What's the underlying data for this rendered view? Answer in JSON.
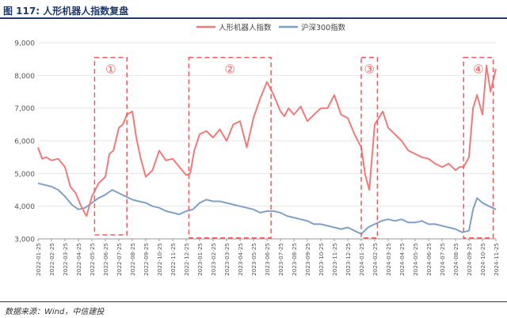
{
  "figure": {
    "title": "图 117: 人形机器人指数复盘",
    "source": "数据来源：Wind，中信建投"
  },
  "chart_data": {
    "type": "line",
    "title": "图 117: 人形机器人指数复盘",
    "ylim": [
      3000,
      9000
    ],
    "y_ticks": [
      "3,000",
      "4,000",
      "5,000",
      "6,000",
      "7,000",
      "8,000",
      "9,000"
    ],
    "y_tick_values": [
      3000,
      4000,
      5000,
      6000,
      7000,
      8000,
      9000
    ],
    "x_tick_labels": [
      "2022-01-25",
      "2022-02-25",
      "2022-03-25",
      "2022-04-25",
      "2022-05-25",
      "2022-06-25",
      "2022-07-25",
      "2022-08-25",
      "2022-09-25",
      "2022-10-25",
      "2022-11-25",
      "2022-12-25",
      "2023-01-25",
      "2023-02-25",
      "2023-03-25",
      "2023-04-25",
      "2023-05-25",
      "2023-06-25",
      "2023-07-25",
      "2023-08-25",
      "2023-09-25",
      "2023-10-25",
      "2023-11-25",
      "2023-12-25",
      "2024-01-25",
      "2024-02-25",
      "2024-03-25",
      "2024-04-25",
      "2024-05-25",
      "2024-06-25",
      "2024-07-25",
      "2024-08-25",
      "2024-09-25",
      "2024-10-25",
      "2024-11-25"
    ],
    "legend_position": "top",
    "series": [
      {
        "name": "人形机器人指数",
        "color": "#f07a7a",
        "x": [
          0,
          0.3,
          0.6,
          1,
          1.5,
          2,
          2.4,
          2.8,
          3.2,
          3.6,
          4,
          4.5,
          5,
          5.3,
          5.6,
          6,
          6.3,
          6.6,
          7,
          7.3,
          7.6,
          8,
          8.5,
          9,
          9.5,
          10,
          10.5,
          11,
          11.3,
          11.6,
          12,
          12.5,
          13,
          13.5,
          14,
          14.5,
          15,
          15.5,
          16,
          16.5,
          17,
          17.5,
          18,
          18.3,
          18.6,
          19,
          19.5,
          20,
          20.5,
          21,
          21.5,
          22,
          22.5,
          23,
          23.5,
          24,
          24.3,
          24.6,
          25,
          25.3,
          25.6,
          26,
          26.5,
          27,
          27.5,
          28,
          28.5,
          29,
          29.5,
          30,
          30.5,
          31,
          31.3,
          31.6,
          32,
          32.3,
          32.6,
          33,
          33.3,
          33.6,
          34
        ],
        "values": [
          5800,
          5450,
          5500,
          5400,
          5450,
          5200,
          4600,
          4400,
          4000,
          3700,
          4300,
          4700,
          4900,
          5600,
          5700,
          6400,
          6500,
          6800,
          6900,
          6100,
          5500,
          4900,
          5100,
          5700,
          5400,
          5450,
          5200,
          4950,
          5000,
          5700,
          6200,
          6300,
          6100,
          6350,
          6000,
          6500,
          6600,
          5800,
          6700,
          7300,
          7800,
          7400,
          6900,
          6750,
          7000,
          6800,
          7050,
          6600,
          6800,
          7000,
          7000,
          7400,
          6800,
          6700,
          6200,
          5800,
          4950,
          4500,
          6500,
          6700,
          6900,
          6400,
          6200,
          6000,
          5700,
          5600,
          5500,
          5450,
          5300,
          5200,
          5300,
          5100,
          5200,
          5200,
          5500,
          7000,
          7400,
          6800,
          8300,
          7500,
          8200
        ]
      },
      {
        "name": "沪深300指数",
        "color": "#7fa1c8",
        "x": [
          0,
          0.5,
          1,
          1.5,
          2,
          2.5,
          3,
          3.5,
          4,
          4.5,
          5,
          5.5,
          6,
          6.5,
          7,
          7.5,
          8,
          8.5,
          9,
          9.5,
          10,
          10.5,
          11,
          11.5,
          12,
          12.5,
          13,
          13.5,
          14,
          14.5,
          15,
          15.5,
          16,
          16.5,
          17,
          17.5,
          18,
          18.5,
          19,
          19.5,
          20,
          20.5,
          21,
          21.5,
          22,
          22.5,
          23,
          23.5,
          24,
          24.5,
          25,
          25.5,
          26,
          26.5,
          27,
          27.5,
          28,
          28.5,
          29,
          29.5,
          30,
          30.5,
          31,
          31.5,
          32,
          32.3,
          32.6,
          33,
          33.5,
          34
        ],
        "values": [
          4700,
          4650,
          4600,
          4500,
          4300,
          4050,
          3900,
          3950,
          4100,
          4250,
          4350,
          4500,
          4400,
          4300,
          4200,
          4150,
          4100,
          4000,
          3950,
          3850,
          3800,
          3750,
          3850,
          3900,
          4100,
          4200,
          4150,
          4150,
          4100,
          4050,
          4000,
          3950,
          3900,
          3800,
          3850,
          3850,
          3800,
          3700,
          3650,
          3600,
          3550,
          3450,
          3450,
          3400,
          3350,
          3300,
          3350,
          3250,
          3150,
          3350,
          3450,
          3550,
          3600,
          3550,
          3600,
          3500,
          3500,
          3550,
          3450,
          3450,
          3400,
          3350,
          3300,
          3200,
          3250,
          3900,
          4250,
          4100,
          4000,
          3900
        ]
      }
    ],
    "annotations": [
      {
        "label": "①",
        "x_start": 4.2,
        "x_end": 6.6,
        "y_top": 8550,
        "y_bottom": 3120
      },
      {
        "label": "②",
        "x_start": 11.2,
        "x_end": 17.3,
        "y_top": 8550,
        "y_bottom": 3030
      },
      {
        "label": "③",
        "x_start": 24.0,
        "x_end": 25.2,
        "y_top": 8550,
        "y_bottom": 3030
      },
      {
        "label": "④",
        "x_start": 31.6,
        "x_end": 33.8,
        "y_top": 8550,
        "y_bottom": 3030
      }
    ]
  }
}
